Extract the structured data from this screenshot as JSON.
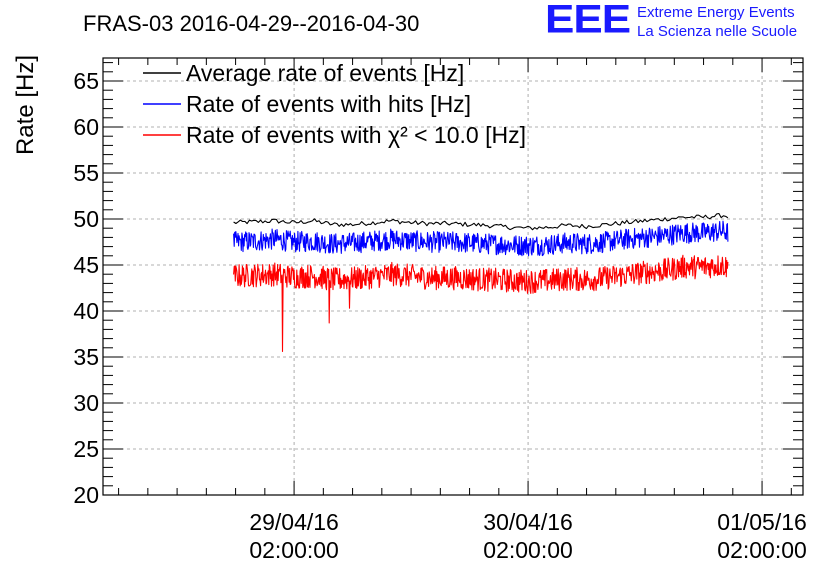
{
  "header": {
    "logo": "EEE",
    "project_line1": "Extreme Energy Events",
    "project_line2": "La Scienza nelle Scuole"
  },
  "chart_data": {
    "type": "line",
    "title": "FRAS-03 2016-04-29--2016-04-30",
    "xlabel": "",
    "ylabel": "Rate [Hz]",
    "ylim": [
      20,
      67.5
    ],
    "xlim_hours": [
      -19.6,
      52.2
    ],
    "y_ticks": [
      20,
      25,
      30,
      35,
      40,
      45,
      50,
      55,
      60,
      65
    ],
    "x_ticks": [
      {
        "hour": 0,
        "line1": "29/04/16",
        "line2": "02:00:00"
      },
      {
        "hour": 24,
        "line1": "30/04/16",
        "line2": "02:00:00"
      },
      {
        "hour": 48,
        "line1": "01/05/16",
        "line2": "02:00:00"
      }
    ],
    "grid": true,
    "legend_position": "top-left",
    "series": [
      {
        "name": "Average rate of events [Hz]",
        "color": "#000000",
        "x_hours": [
          -6.2,
          -4,
          -2,
          0,
          2,
          4,
          6,
          8,
          10,
          12,
          14,
          16,
          18,
          20,
          22,
          24,
          26,
          28,
          30,
          32,
          34,
          36,
          38,
          40,
          42,
          44,
          44.5
        ],
        "values": [
          49.6,
          49.7,
          49.8,
          49.6,
          49.8,
          49.4,
          49.4,
          49.6,
          49.8,
          49.6,
          49.5,
          49.5,
          49.4,
          49.3,
          49.1,
          49.0,
          49.1,
          49.3,
          49.2,
          49.4,
          49.6,
          49.8,
          50.0,
          50.2,
          50.2,
          50.4,
          50.3
        ]
      },
      {
        "name": "Rate of events with hits [Hz]",
        "color": "#0000ff",
        "x_hours": [
          -6.2,
          -4,
          -2,
          0,
          2,
          4,
          6,
          8,
          10,
          12,
          14,
          16,
          18,
          20,
          22,
          24,
          26,
          28,
          30,
          32,
          34,
          36,
          38,
          40,
          42,
          44,
          44.5
        ],
        "values": [
          47.5,
          47.6,
          47.8,
          47.5,
          47.6,
          47.3,
          47.4,
          47.6,
          47.8,
          47.6,
          47.5,
          47.5,
          47.4,
          47.3,
          47.2,
          47.1,
          47.2,
          47.4,
          47.3,
          47.5,
          47.8,
          48.0,
          48.2,
          48.5,
          48.5,
          48.7,
          48.5
        ]
      },
      {
        "name": "Rate of events with χ² < 10.0 [Hz]",
        "color": "#ff0000",
        "x_hours": [
          -6.2,
          -4,
          -2,
          0,
          2,
          4,
          6,
          8,
          10,
          12,
          14,
          16,
          18,
          20,
          22,
          24,
          26,
          28,
          30,
          32,
          34,
          36,
          38,
          40,
          42,
          44,
          44.5
        ],
        "values": [
          43.8,
          43.9,
          44.0,
          43.7,
          43.8,
          43.4,
          43.5,
          43.7,
          44.0,
          43.8,
          43.6,
          43.6,
          43.5,
          43.4,
          43.3,
          43.2,
          43.3,
          43.5,
          43.4,
          43.6,
          43.9,
          44.2,
          44.4,
          44.8,
          44.8,
          45.0,
          44.7
        ],
        "dips": [
          {
            "hour": -1.2,
            "value": 35.6
          },
          {
            "hour": 3.6,
            "value": 38.7
          },
          {
            "hour": 5.7,
            "value": 40.3
          }
        ]
      }
    ]
  }
}
